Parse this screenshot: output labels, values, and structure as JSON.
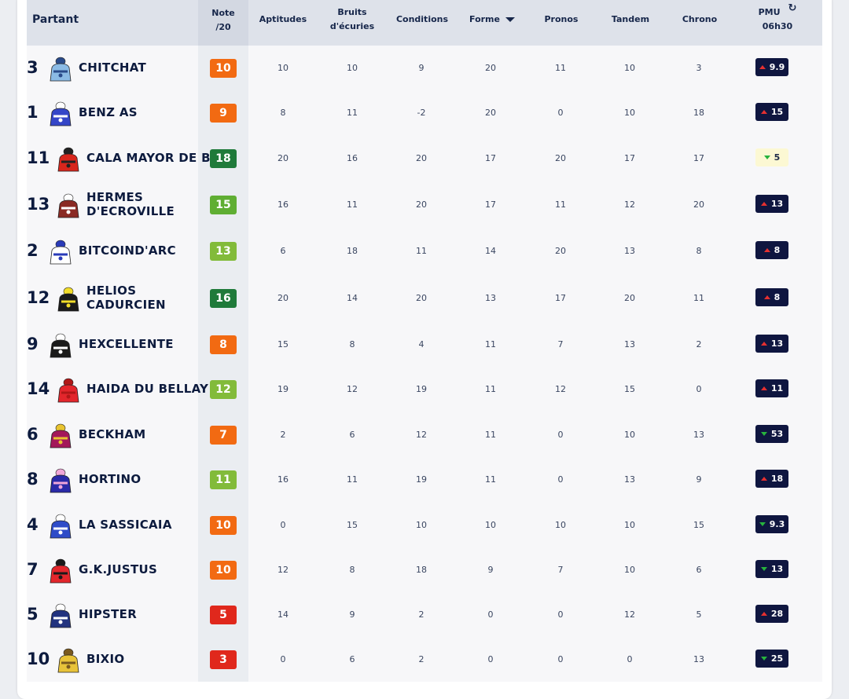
{
  "header": {
    "partant": "Partant",
    "note_line1": "Note",
    "note_line2": "/20",
    "aptitudes": "Aptitudes",
    "bruits_line1": "Bruits",
    "bruits_line2": "d'écuries",
    "conditions": "Conditions",
    "forme": "Forme",
    "pronos": "Pronos",
    "tandem": "Tandem",
    "chrono": "Chrono",
    "pmu_line1": "PMU",
    "pmu_line2": "06h30"
  },
  "colors": {
    "orange": "#f26a12",
    "dark_green": "#1f7a3a",
    "mid_green": "#5fae33",
    "light_green": "#82bb3a",
    "red": "#e0281c",
    "navy": "#0f1640"
  },
  "rows": [
    {
      "num": "3",
      "name": [
        "CHITCHAT"
      ],
      "note": "10",
      "note_color": "orange",
      "aptitudes": "10",
      "bruits": "10",
      "conditions": "9",
      "forme": "20",
      "pronos": "11",
      "tandem": "10",
      "chrono": "3",
      "pmu": "9.9",
      "trend": "up",
      "pmu_style": "dark",
      "silk": "#8bbbe5",
      "silk2": "#2a4b8a"
    },
    {
      "num": "1",
      "name": [
        "BENZ AS"
      ],
      "note": "9",
      "note_color": "orange",
      "aptitudes": "8",
      "bruits": "11",
      "conditions": "-2",
      "forme": "20",
      "pronos": "0",
      "tandem": "10",
      "chrono": "18",
      "pmu": "15",
      "trend": "up",
      "pmu_style": "dark",
      "silk": "#3446c8",
      "silk2": "#ffffff"
    },
    {
      "num": "11",
      "name": [
        "CALA MAYOR DE B."
      ],
      "note": "18",
      "note_color": "dark_green",
      "aptitudes": "20",
      "bruits": "16",
      "conditions": "20",
      "forme": "17",
      "pronos": "20",
      "tandem": "17",
      "chrono": "17",
      "pmu": "5",
      "trend": "down",
      "pmu_style": "light",
      "silk": "#d8261c",
      "silk2": "#222222"
    },
    {
      "num": "13",
      "name": [
        "HERMES",
        "D'ECROVILLE"
      ],
      "note": "15",
      "note_color": "mid_green",
      "aptitudes": "16",
      "bruits": "11",
      "conditions": "20",
      "forme": "17",
      "pronos": "11",
      "tandem": "12",
      "chrono": "20",
      "pmu": "13",
      "trend": "up",
      "pmu_style": "dark",
      "silk": "#8a2a24",
      "silk2": "#ffffff"
    },
    {
      "num": "2",
      "name": [
        "BITCOIND'ARC"
      ],
      "note": "13",
      "note_color": "light_green",
      "aptitudes": "6",
      "bruits": "18",
      "conditions": "11",
      "forme": "14",
      "pronos": "20",
      "tandem": "13",
      "chrono": "8",
      "pmu": "8",
      "trend": "up",
      "pmu_style": "dark",
      "silk": "#ffffff",
      "silk2": "#2a3bb8"
    },
    {
      "num": "12",
      "name": [
        "HELIOS",
        "CADURCIEN"
      ],
      "note": "16",
      "note_color": "dark_green",
      "aptitudes": "20",
      "bruits": "14",
      "conditions": "20",
      "forme": "13",
      "pronos": "17",
      "tandem": "20",
      "chrono": "11",
      "pmu": "8",
      "trend": "up",
      "pmu_style": "dark",
      "silk": "#1a1a1a",
      "silk2": "#f2dd2a"
    },
    {
      "num": "9",
      "name": [
        "HEXCELLENTE"
      ],
      "note": "8",
      "note_color": "orange",
      "aptitudes": "15",
      "bruits": "8",
      "conditions": "4",
      "forme": "11",
      "pronos": "7",
      "tandem": "13",
      "chrono": "2",
      "pmu": "13",
      "trend": "up",
      "pmu_style": "dark",
      "silk": "#1a1a1a",
      "silk2": "#ffffff"
    },
    {
      "num": "14",
      "name": [
        "HAIDA DU BELLAY"
      ],
      "note": "12",
      "note_color": "light_green",
      "aptitudes": "19",
      "bruits": "12",
      "conditions": "19",
      "forme": "11",
      "pronos": "12",
      "tandem": "15",
      "chrono": "0",
      "pmu": "11",
      "trend": "up",
      "pmu_style": "dark",
      "silk": "#e3262c",
      "silk2": "#b01818"
    },
    {
      "num": "6",
      "name": [
        "BECKHAM"
      ],
      "note": "7",
      "note_color": "orange",
      "aptitudes": "2",
      "bruits": "6",
      "conditions": "12",
      "forme": "11",
      "pronos": "0",
      "tandem": "10",
      "chrono": "13",
      "pmu": "53",
      "trend": "down",
      "pmu_style": "dark",
      "silk": "#a3185a",
      "silk2": "#e8c330"
    },
    {
      "num": "8",
      "name": [
        "HORTINO"
      ],
      "note": "11",
      "note_color": "light_green",
      "aptitudes": "16",
      "bruits": "11",
      "conditions": "19",
      "forme": "11",
      "pronos": "0",
      "tandem": "13",
      "chrono": "9",
      "pmu": "18",
      "trend": "up",
      "pmu_style": "dark",
      "silk": "#2a2aa8",
      "silk2": "#f0a6d8"
    },
    {
      "num": "4",
      "name": [
        "LA SASSICAIA"
      ],
      "note": "10",
      "note_color": "orange",
      "aptitudes": "0",
      "bruits": "15",
      "conditions": "10",
      "forme": "10",
      "pronos": "10",
      "tandem": "10",
      "chrono": "15",
      "pmu": "9.3",
      "trend": "down",
      "pmu_style": "dark",
      "silk": "#2f4cc8",
      "silk2": "#ffffff"
    },
    {
      "num": "7",
      "name": [
        "G.K.JUSTUS"
      ],
      "note": "10",
      "note_color": "orange",
      "aptitudes": "12",
      "bruits": "8",
      "conditions": "18",
      "forme": "9",
      "pronos": "7",
      "tandem": "10",
      "chrono": "6",
      "pmu": "13",
      "trend": "down",
      "pmu_style": "dark",
      "silk": "#e3262c",
      "silk2": "#1a1a1a"
    },
    {
      "num": "5",
      "name": [
        "HIPSTER"
      ],
      "note": "5",
      "note_color": "red",
      "aptitudes": "14",
      "bruits": "9",
      "conditions": "2",
      "forme": "0",
      "pronos": "0",
      "tandem": "12",
      "chrono": "5",
      "pmu": "28",
      "trend": "up",
      "pmu_style": "dark",
      "silk": "#22337f",
      "silk2": "#ffffff"
    },
    {
      "num": "10",
      "name": [
        "BIXIO"
      ],
      "note": "3",
      "note_color": "red",
      "aptitudes": "0",
      "bruits": "6",
      "conditions": "2",
      "forme": "0",
      "pronos": "0",
      "tandem": "0",
      "chrono": "13",
      "pmu": "25",
      "trend": "down",
      "pmu_style": "dark",
      "silk": "#e8c33a",
      "silk2": "#7a5a20"
    }
  ]
}
